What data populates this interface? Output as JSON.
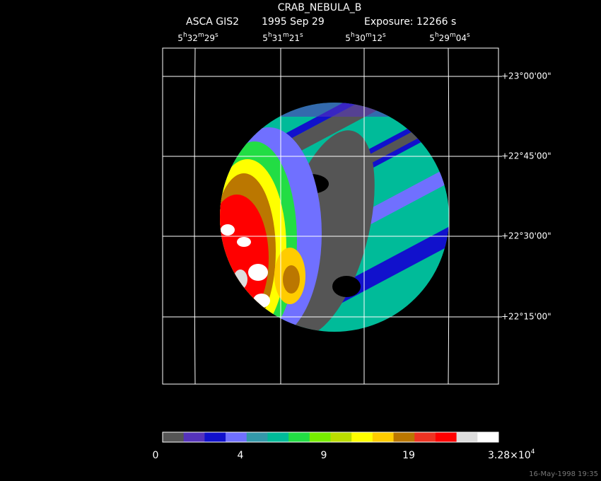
{
  "header": {
    "title": "CRAB_NEBULA_B",
    "instrument": "ASCA GIS2",
    "date": "1995 Sep 29",
    "exposure": "Exposure: 12266 s"
  },
  "ra_labels": [
    [
      "5",
      "h",
      "32",
      "m",
      "29",
      "s"
    ],
    [
      "5",
      "h",
      "31",
      "m",
      "21",
      "s"
    ],
    [
      "5",
      "h",
      "30",
      "m",
      "12",
      "s"
    ],
    [
      "5",
      "h",
      "29",
      "m",
      "04",
      "s"
    ]
  ],
  "dec_labels": [
    "+23°00'00\"",
    "+22°45'00\"",
    "+22°30'00\"",
    "+22°15'00\""
  ],
  "colorbar": {
    "colors": [
      "#555555",
      "#5533bb",
      "#1111cc",
      "#7070ff",
      "#3399aa",
      "#00bb99",
      "#22dd44",
      "#77ee00",
      "#bbdd00",
      "#ffff00",
      "#ffcc00",
      "#bb7700",
      "#ee3322",
      "#ff0000",
      "#dddddd",
      "#ffffff"
    ],
    "labels": [
      "0",
      "4",
      "9",
      "19"
    ],
    "max_label": [
      "3.28×10",
      "4"
    ]
  },
  "timestamp": "16-May-1998 19:35"
}
